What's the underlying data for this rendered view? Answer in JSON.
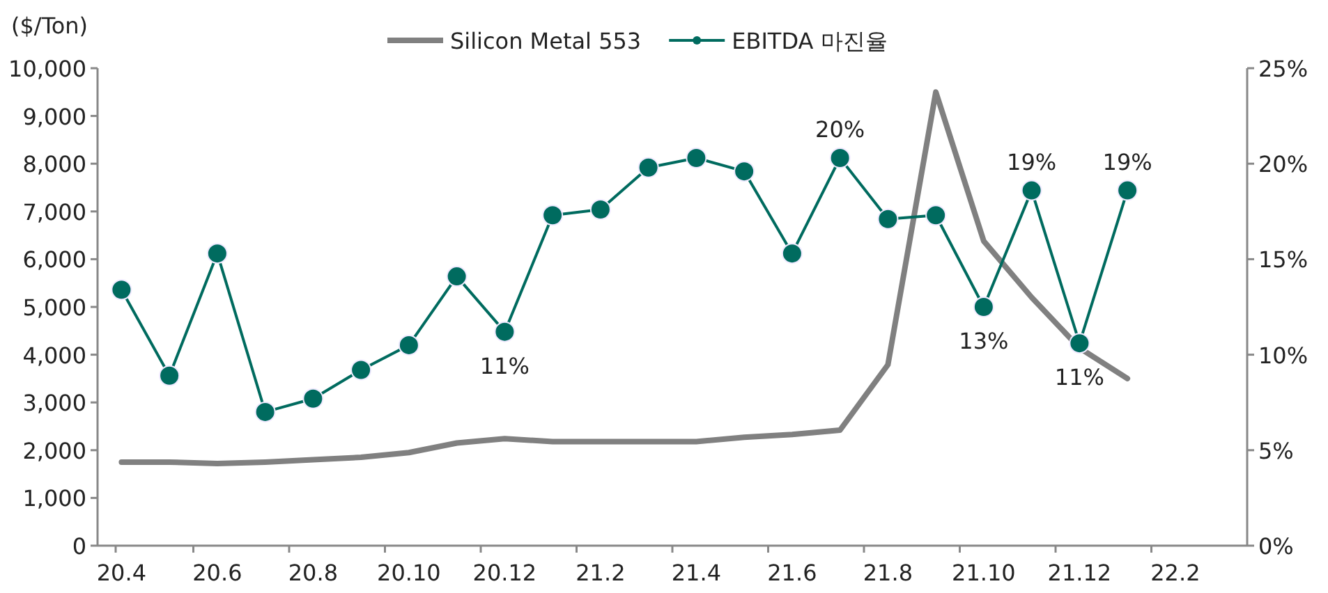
{
  "chart_data": {
    "type": "line",
    "ylabel": "($/Ton)",
    "legend": "top",
    "grid": false,
    "categories": [
      "20.4",
      null,
      "20.6",
      null,
      "20.8",
      null,
      "20.10",
      null,
      "20.12",
      null,
      "21.2",
      null,
      "21.4",
      null,
      "21.6",
      null,
      "21.8",
      null,
      "21.10",
      null,
      "21.12",
      null,
      "22.2",
      null
    ],
    "ylim": [
      0,
      10000
    ],
    "yticks": [
      {
        "value": 0,
        "label": "0"
      },
      {
        "value": 1000,
        "label": "1,000"
      },
      {
        "value": 2000,
        "label": "2,000"
      },
      {
        "value": 3000,
        "label": "3,000"
      },
      {
        "value": 4000,
        "label": "4,000"
      },
      {
        "value": 5000,
        "label": "5,000"
      },
      {
        "value": 6000,
        "label": "6,000"
      },
      {
        "value": 7000,
        "label": "7,000"
      },
      {
        "value": 8000,
        "label": "8,000"
      },
      {
        "value": 9000,
        "label": "9,000"
      },
      {
        "value": 10000,
        "label": "10,000"
      }
    ],
    "y2lim": [
      0,
      25
    ],
    "y2ticks": [
      {
        "value": 0,
        "label": "0%"
      },
      {
        "value": 5,
        "label": "5%"
      },
      {
        "value": 10,
        "label": "10%"
      },
      {
        "value": 15,
        "label": "15%"
      },
      {
        "value": 20,
        "label": "20%"
      },
      {
        "value": 25,
        "label": "25%"
      }
    ],
    "series": [
      {
        "name": "Silicon Metal 553",
        "color": "#808080",
        "marker": "none",
        "values": [
          1750,
          1750,
          1720,
          1750,
          1800,
          1850,
          1950,
          2150,
          2240,
          2180,
          2180,
          2180,
          2180,
          2270,
          2330,
          2420,
          3790,
          9500,
          6380,
          5200,
          4140,
          3500,
          null,
          null
        ]
      },
      {
        "name": "EBITDA 마진율",
        "color": "#006b5f",
        "axis": "y2",
        "marker": "circle",
        "values": [
          13.4,
          8.9,
          15.3,
          7.0,
          7.7,
          9.2,
          10.5,
          14.1,
          11.2,
          17.3,
          17.6,
          19.8,
          20.3,
          19.6,
          15.3,
          20.3,
          17.1,
          17.3,
          12.5,
          18.6,
          10.6,
          18.6,
          null,
          null
        ],
        "value_labels": [
          null,
          null,
          null,
          null,
          null,
          null,
          null,
          null,
          "11%",
          null,
          null,
          null,
          null,
          null,
          null,
          "20%",
          null,
          null,
          "13%",
          "19%",
          "11%",
          "19%",
          null,
          null
        ]
      }
    ]
  }
}
